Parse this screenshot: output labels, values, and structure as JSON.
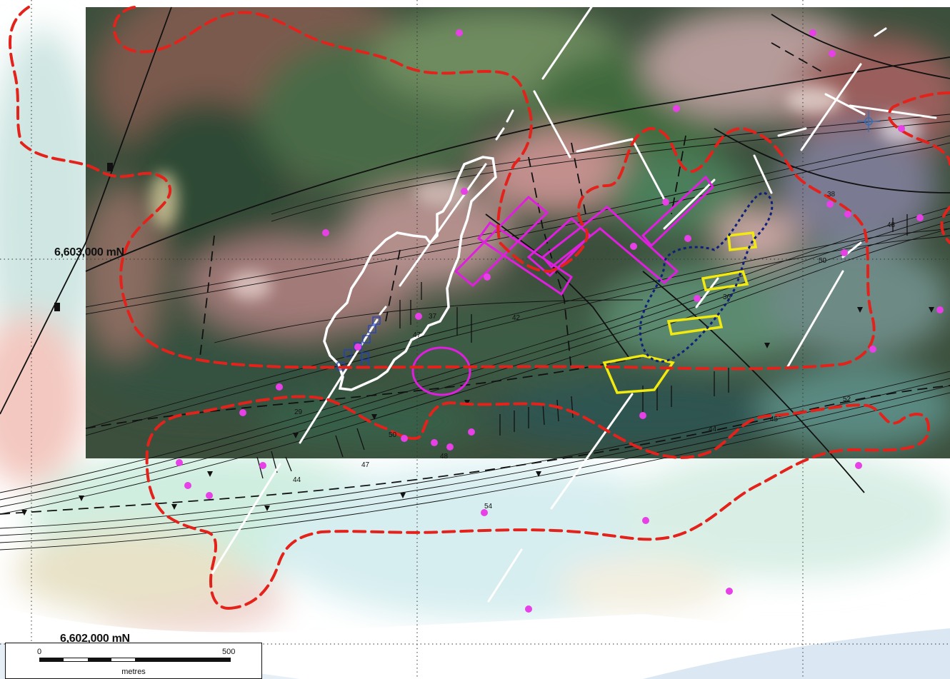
{
  "grid": {
    "northing_upper": "6,603,000 mN",
    "northing_lower": "6,602,000 mN"
  },
  "scalebar": {
    "zero_label": "0",
    "max_label": "500",
    "unit_label": "metres"
  },
  "dip_labels": [
    "38",
    "48",
    "50",
    "36",
    "42",
    "37",
    "47",
    "44",
    "29",
    "50",
    "48",
    "47",
    "54",
    "52",
    "45",
    "44"
  ],
  "colors": {
    "anomaly_outline": "#e3231b",
    "intrusive_outline": "#ffffff",
    "target_zone": "#e01ee0",
    "prospect_box": "#f2ea0f",
    "dotted_zone": "#10207a",
    "sample_point": "#e640e6",
    "structure_line": "#111111",
    "lineament": "#ffffff",
    "grid": "#333333"
  },
  "icons": {
    "crosshair": "crosshair-icon",
    "sample": "sample-point-icon",
    "drill_marker": "square-marker-icon"
  }
}
